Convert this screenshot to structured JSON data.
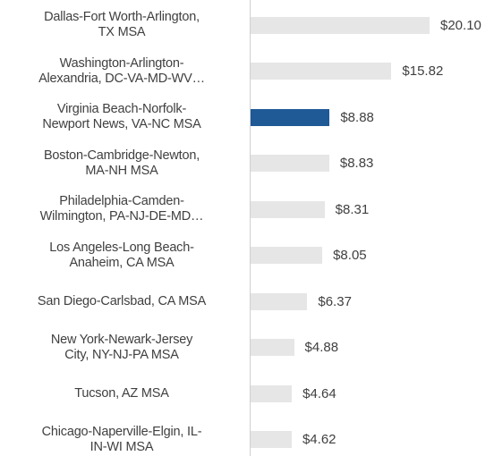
{
  "chart_data": {
    "type": "bar",
    "orientation": "horizontal",
    "categories": [
      "Dallas-Fort Worth-Arlington,\nTX MSA",
      "Washington-Arlington-\nAlexandria, DC-VA-MD-WV…",
      "Virginia Beach-Norfolk-\nNewport News, VA-NC MSA",
      "Boston-Cambridge-Newton,\nMA-NH MSA",
      "Philadelphia-Camden-\nWilmington, PA-NJ-DE-MD…",
      "Los Angeles-Long Beach-\nAnaheim, CA MSA",
      "San Diego-Carlsbad, CA MSA",
      "New York-Newark-Jersey\nCity, NY-NJ-PA MSA",
      "Tucson, AZ MSA",
      "Chicago-Naperville-Elgin, IL-\nIN-WI MSA"
    ],
    "values": [
      20.1,
      15.82,
      8.88,
      8.83,
      8.31,
      8.05,
      6.37,
      4.88,
      4.64,
      4.62
    ],
    "value_labels": [
      "$20.10",
      "$15.82",
      "$8.88",
      "$8.83",
      "$8.31",
      "$8.05",
      "$6.37",
      "$4.88",
      "$4.64",
      "$4.62"
    ],
    "colors": [
      "#e6e6e6",
      "#e6e6e6",
      "#1f5a96",
      "#e6e6e6",
      "#e6e6e6",
      "#e6e6e6",
      "#e6e6e6",
      "#e6e6e6",
      "#e6e6e6",
      "#e6e6e6"
    ]
  }
}
